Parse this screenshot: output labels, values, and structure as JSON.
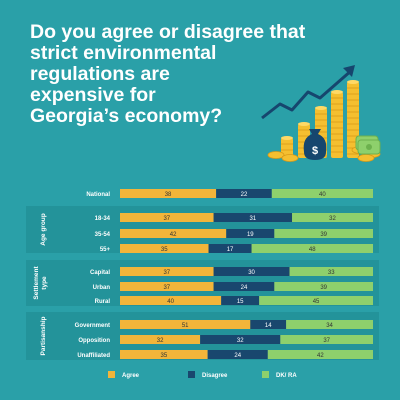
{
  "title_lines": [
    "Do you agree or disagree that",
    "strict environmental",
    "regulations are",
    "expensive for",
    "Georgia’s economy?"
  ],
  "colors": {
    "background": "#2aa0a8",
    "agree": "#f2b53a",
    "disagree": "#19476e",
    "dk_ra": "#8ed06c",
    "panel": "#23939a",
    "coins": "#f4bf30",
    "money": "#8ed06c",
    "bag": "#16466e",
    "arrow": "#16466e"
  },
  "icon": "growth-chart-coins-money-icon",
  "chart_data": {
    "type": "bar",
    "stacked": true,
    "orientation": "horizontal",
    "groups": [
      {
        "label": "",
        "rows": [
          {
            "label": "National",
            "values": [
              38,
              22,
              40
            ]
          }
        ]
      },
      {
        "label": "Age group",
        "rows": [
          {
            "label": "18-34",
            "values": [
              37,
              31,
              32
            ]
          },
          {
            "label": "35-54",
            "values": [
              42,
              19,
              39
            ]
          },
          {
            "label": "55+",
            "values": [
              35,
              17,
              48
            ]
          }
        ]
      },
      {
        "label": "Settlement type",
        "rows": [
          {
            "label": "Capital",
            "values": [
              37,
              30,
              33
            ]
          },
          {
            "label": "Urban",
            "values": [
              37,
              24,
              39
            ]
          },
          {
            "label": "Rural",
            "values": [
              40,
              15,
              45
            ]
          }
        ]
      },
      {
        "label": "Partisanship",
        "rows": [
          {
            "label": "Government",
            "values": [
              51,
              14,
              34
            ]
          },
          {
            "label": "Opposition",
            "values": [
              32,
              32,
              37
            ]
          },
          {
            "label": "Unaffiliated",
            "values": [
              35,
              24,
              42
            ]
          }
        ]
      }
    ],
    "series": [
      {
        "name": "Agree"
      },
      {
        "name": "Disagree"
      },
      {
        "name": "DK/ RA"
      }
    ],
    "xlim": [
      0,
      100
    ],
    "legend": "bottom"
  }
}
